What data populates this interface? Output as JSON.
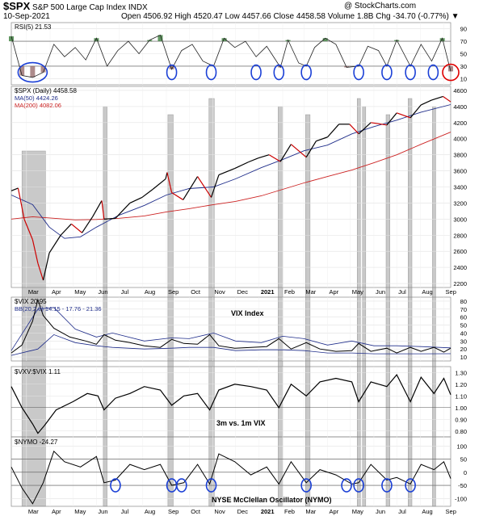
{
  "header": {
    "symbol": "$SPX",
    "name": "S&P 500 Large Cap Index",
    "exchange": "INDX",
    "date": "10-Sep-2021",
    "quote": "Open 4506.92 High 4520.47 Low 4457.66 Close 4458.58 Volume 1.8B Chg -34.70 (-0.77%) ▼",
    "credit": "@ StockCharts.com"
  },
  "months": [
    "Mar",
    "Apr",
    "May",
    "Jun",
    "Jul",
    "Aug",
    "Sep",
    "Oct",
    "Nov",
    "Dec",
    "2021",
    "Feb",
    "Mar",
    "Apr",
    "May",
    "Jun",
    "Jul",
    "Aug",
    "Sep"
  ],
  "colors": {
    "price_up": "#000000",
    "price_down": "#cc0000",
    "ma50": "#1f2d8a",
    "ma200": "#cc2222",
    "rsi_fill": "#3a7d3a",
    "shade": "#c0c0c0",
    "circle": "#1a3fd6",
    "circle_last": "#e00000"
  },
  "chart_data": [
    {
      "type": "line",
      "title": "RSI(5) 21.53",
      "legend": "RSI(5) 21.53",
      "yticks": [
        10,
        30,
        50,
        70,
        90
      ],
      "ylim": [
        0,
        100
      ],
      "levels": [
        30,
        70
      ],
      "dates": [
        "2020-02-10",
        "2020-02-24",
        "2020-03-09",
        "2020-03-23",
        "2020-04-06",
        "2020-04-20",
        "2020-05-04",
        "2020-05-18",
        "2020-06-01",
        "2020-06-15",
        "2020-06-29",
        "2020-07-13",
        "2020-07-27",
        "2020-08-10",
        "2020-08-24",
        "2020-09-08",
        "2020-09-21",
        "2020-10-05",
        "2020-10-19",
        "2020-11-02",
        "2020-11-16",
        "2020-11-30",
        "2020-12-14",
        "2020-12-28",
        "2021-01-11",
        "2021-01-29",
        "2021-02-08",
        "2021-02-22",
        "2021-03-04",
        "2021-03-15",
        "2021-03-29",
        "2021-04-12",
        "2021-04-26",
        "2021-05-12",
        "2021-05-24",
        "2021-06-07",
        "2021-06-18",
        "2021-07-01",
        "2021-07-19",
        "2021-08-02",
        "2021-08-16",
        "2021-08-30",
        "2021-09-10"
      ],
      "values": [
        78,
        15,
        12,
        20,
        65,
        45,
        60,
        40,
        75,
        30,
        55,
        70,
        50,
        72,
        80,
        25,
        55,
        65,
        38,
        30,
        75,
        60,
        70,
        45,
        62,
        28,
        72,
        35,
        30,
        60,
        75,
        65,
        28,
        30,
        62,
        55,
        30,
        72,
        30,
        65,
        38,
        75,
        21.53
      ]
    },
    {
      "type": "line",
      "title": "$SPX (Daily) 4458.58",
      "legend": [
        "$SPX (Daily) 4458.58",
        "MA(50) 4424.26",
        "MA(200) 4082.06"
      ],
      "yticks": [
        2200,
        2400,
        2600,
        2800,
        3000,
        3200,
        3400,
        3600,
        3800,
        4000,
        4200,
        4400,
        4600
      ],
      "ylim": [
        2150,
        4650
      ],
      "series": [
        {
          "name": "$SPX (Daily) 4458.58",
          "x": [
            "2020-02-10",
            "2020-02-19",
            "2020-02-27",
            "2020-03-09",
            "2020-03-16",
            "2020-03-23",
            "2020-03-31",
            "2020-04-15",
            "2020-04-29",
            "2020-05-13",
            "2020-05-27",
            "2020-06-08",
            "2020-06-11",
            "2020-06-26",
            "2020-07-15",
            "2020-07-31",
            "2020-08-14",
            "2020-08-31",
            "2020-09-02",
            "2020-09-08",
            "2020-09-23",
            "2020-10-12",
            "2020-10-30",
            "2020-11-09",
            "2020-11-30",
            "2020-12-18",
            "2020-12-31",
            "2021-01-14",
            "2021-01-29",
            "2021-02-12",
            "2021-03-04",
            "2021-03-17",
            "2021-04-01",
            "2021-04-16",
            "2021-04-30",
            "2021-05-12",
            "2021-05-28",
            "2021-06-18",
            "2021-07-01",
            "2021-07-19",
            "2021-08-02",
            "2021-08-16",
            "2021-08-31",
            "2021-09-10"
          ],
          "values": [
            3352,
            3385,
            3000,
            2745,
            2450,
            2240,
            2580,
            2800,
            2940,
            2830,
            3030,
            3230,
            3000,
            3010,
            3200,
            3270,
            3370,
            3500,
            3580,
            3330,
            3240,
            3530,
            3270,
            3550,
            3630,
            3710,
            3760,
            3800,
            3715,
            3930,
            3770,
            3970,
            4020,
            4180,
            4180,
            4060,
            4200,
            4170,
            4320,
            4260,
            4420,
            4480,
            4525,
            4458.58
          ]
        },
        {
          "name": "MA(50) 4424.26",
          "x": [
            "2020-02-10",
            "2020-03-09",
            "2020-03-31",
            "2020-04-20",
            "2020-05-11",
            "2020-06-01",
            "2020-07-01",
            "2020-08-03",
            "2020-09-01",
            "2020-10-01",
            "2020-11-02",
            "2020-12-01",
            "2021-01-04",
            "2021-02-01",
            "2021-03-01",
            "2021-04-01",
            "2021-05-03",
            "2021-06-01",
            "2021-07-01",
            "2021-08-02",
            "2021-09-10"
          ],
          "values": [
            3300,
            3180,
            2900,
            2760,
            2780,
            2900,
            3050,
            3170,
            3300,
            3380,
            3400,
            3500,
            3640,
            3740,
            3850,
            3920,
            4060,
            4150,
            4230,
            4330,
            4424.26
          ]
        },
        {
          "name": "MA(200) 4082.06",
          "x": [
            "2020-02-10",
            "2020-03-09",
            "2020-04-06",
            "2020-05-04",
            "2020-06-01",
            "2020-07-01",
            "2020-08-03",
            "2020-09-01",
            "2020-10-01",
            "2020-11-02",
            "2020-12-01",
            "2021-01-04",
            "2021-02-01",
            "2021-03-01",
            "2021-04-01",
            "2021-05-03",
            "2021-06-01",
            "2021-07-01",
            "2021-08-02",
            "2021-09-10"
          ],
          "values": [
            3000,
            3030,
            3010,
            2990,
            2995,
            3010,
            3040,
            3090,
            3130,
            3180,
            3220,
            3290,
            3370,
            3450,
            3530,
            3610,
            3700,
            3800,
            3930,
            4082.06
          ]
        }
      ]
    },
    {
      "type": "line",
      "title": "VIX Index",
      "legend": [
        "$VIX 20.95",
        "BB(20,2.0) 14.15 - 17.76 - 21.36"
      ],
      "yticks": [
        10,
        20,
        30,
        40,
        50,
        60,
        70,
        80
      ],
      "ylim": [
        5,
        85
      ],
      "series": [
        {
          "name": "$VIX 20.95",
          "x": [
            "2020-02-10",
            "2020-02-24",
            "2020-03-09",
            "2020-03-16",
            "2020-03-23",
            "2020-04-06",
            "2020-04-27",
            "2020-05-18",
            "2020-06-01",
            "2020-06-11",
            "2020-06-26",
            "2020-07-15",
            "2020-08-03",
            "2020-08-24",
            "2020-09-08",
            "2020-09-24",
            "2020-10-12",
            "2020-10-28",
            "2020-11-09",
            "2020-11-30",
            "2020-12-21",
            "2021-01-11",
            "2021-01-27",
            "2021-02-12",
            "2021-03-04",
            "2021-03-22",
            "2021-04-12",
            "2021-05-03",
            "2021-05-12",
            "2021-05-28",
            "2021-06-18",
            "2021-07-01",
            "2021-07-19",
            "2021-08-02",
            "2021-08-19",
            "2021-09-01",
            "2021-09-10"
          ],
          "values": [
            15,
            25,
            55,
            82,
            62,
            46,
            35,
            30,
            26,
            38,
            31,
            28,
            24,
            22,
            32,
            27,
            26,
            38,
            24,
            21,
            22,
            23,
            33,
            20,
            28,
            20,
            17,
            18,
            27,
            17,
            21,
            15,
            22,
            17,
            22,
            16,
            20.95
          ]
        },
        {
          "name": "BB upper",
          "x": [
            "2020-02-10",
            "2020-03-16",
            "2020-04-06",
            "2020-05-04",
            "2020-06-01",
            "2020-06-22",
            "2020-08-03",
            "2020-09-08",
            "2020-10-01",
            "2020-11-02",
            "2020-12-01",
            "2021-01-04",
            "2021-02-01",
            "2021-03-01",
            "2021-04-01",
            "2021-05-03",
            "2021-06-01",
            "2021-07-01",
            "2021-08-02",
            "2021-09-10"
          ],
          "values": [
            18,
            70,
            72,
            45,
            35,
            40,
            30,
            34,
            33,
            40,
            30,
            28,
            36,
            33,
            25,
            30,
            24,
            24,
            23,
            21.36
          ]
        },
        {
          "name": "BB lower",
          "x": [
            "2020-02-10",
            "2020-03-16",
            "2020-04-06",
            "2020-05-04",
            "2020-06-01",
            "2020-06-22",
            "2020-08-03",
            "2020-09-08",
            "2020-10-01",
            "2020-11-02",
            "2020-12-01",
            "2021-01-04",
            "2021-02-01",
            "2021-03-01",
            "2021-04-01",
            "2021-05-03",
            "2021-06-01",
            "2021-07-01",
            "2021-08-02",
            "2021-09-10"
          ],
          "values": [
            12,
            20,
            38,
            28,
            24,
            22,
            20,
            21,
            22,
            22,
            18,
            19,
            19,
            18,
            15,
            15,
            14,
            14,
            14,
            14.15
          ]
        }
      ]
    },
    {
      "type": "line",
      "title": "3m vs. 1m VIX",
      "legend": "$VXV:$VIX 1.11",
      "yticks": [
        0.8,
        0.9,
        1.0,
        1.1,
        1.2,
        1.3
      ],
      "ylim": [
        0.75,
        1.35
      ],
      "x": [
        "2020-02-10",
        "2020-02-24",
        "2020-03-09",
        "2020-03-16",
        "2020-03-25",
        "2020-04-09",
        "2020-05-01",
        "2020-05-20",
        "2020-06-03",
        "2020-06-11",
        "2020-06-26",
        "2020-07-15",
        "2020-08-03",
        "2020-08-24",
        "2020-09-08",
        "2020-09-24",
        "2020-10-12",
        "2020-10-28",
        "2020-11-09",
        "2020-11-30",
        "2020-12-21",
        "2021-01-11",
        "2021-01-27",
        "2021-02-12",
        "2021-03-04",
        "2021-03-22",
        "2021-04-12",
        "2021-05-03",
        "2021-05-12",
        "2021-05-28",
        "2021-06-18",
        "2021-07-01",
        "2021-07-19",
        "2021-08-02",
        "2021-08-19",
        "2021-09-01",
        "2021-09-10"
      ],
      "values": [
        1.18,
        1.0,
        0.86,
        0.78,
        0.85,
        0.98,
        1.05,
        1.12,
        1.1,
        0.98,
        1.08,
        1.12,
        1.18,
        1.15,
        1.02,
        1.1,
        1.12,
        0.98,
        1.15,
        1.2,
        1.18,
        1.15,
        1.0,
        1.2,
        1.1,
        1.22,
        1.25,
        1.22,
        1.05,
        1.22,
        1.18,
        1.28,
        1.05,
        1.26,
        1.12,
        1.25,
        1.11
      ]
    },
    {
      "type": "line",
      "title": "NYSE McClellan Oscillator (NYMO)",
      "legend": "$NYMO -24.27",
      "yticks": [
        -100,
        -50,
        0,
        50,
        100
      ],
      "ylim": [
        -130,
        135
      ],
      "levels": [
        -50,
        0,
        50
      ],
      "x": [
        "2020-02-10",
        "2020-02-24",
        "2020-03-09",
        "2020-03-23",
        "2020-04-06",
        "2020-04-20",
        "2020-05-11",
        "2020-06-01",
        "2020-06-11",
        "2020-06-26",
        "2020-07-15",
        "2020-08-03",
        "2020-08-24",
        "2020-09-08",
        "2020-09-24",
        "2020-10-12",
        "2020-10-28",
        "2020-11-09",
        "2020-11-30",
        "2020-12-21",
        "2021-01-11",
        "2021-01-27",
        "2021-02-12",
        "2021-03-04",
        "2021-03-22",
        "2021-04-12",
        "2021-05-03",
        "2021-05-12",
        "2021-05-28",
        "2021-06-18",
        "2021-07-01",
        "2021-07-19",
        "2021-08-02",
        "2021-08-19",
        "2021-09-01",
        "2021-09-10"
      ],
      "values": [
        20,
        -60,
        -120,
        -40,
        80,
        40,
        20,
        60,
        -40,
        -30,
        30,
        10,
        30,
        -50,
        -40,
        30,
        -45,
        70,
        40,
        -10,
        20,
        -45,
        40,
        -40,
        10,
        -10,
        -45,
        -40,
        30,
        -30,
        -20,
        -45,
        30,
        10,
        40,
        -24.27
      ]
    }
  ],
  "highlight_periods": [
    {
      "start": "2020-02-24",
      "end": "2020-03-26"
    },
    {
      "start": "2020-06-10",
      "end": "2020-06-15"
    },
    {
      "start": "2020-09-03",
      "end": "2020-09-10"
    },
    {
      "start": "2020-10-27",
      "end": "2020-11-03"
    },
    {
      "start": "2021-01-26",
      "end": "2021-02-01"
    },
    {
      "start": "2021-03-03",
      "end": "2021-03-09"
    },
    {
      "start": "2021-05-10",
      "end": "2021-05-14"
    },
    {
      "start": "2021-05-17",
      "end": "2021-05-21"
    },
    {
      "start": "2021-06-17",
      "end": "2021-06-22"
    },
    {
      "start": "2021-07-16",
      "end": "2021-07-21"
    },
    {
      "start": "2021-08-17",
      "end": "2021-08-20"
    }
  ],
  "rsi_circles": [
    "2020-03-09",
    "2020-09-08",
    "2020-10-30",
    "2020-12-28",
    "2021-01-27",
    "2021-03-04",
    "2021-05-12",
    "2021-06-18",
    "2021-07-19",
    "2021-08-18",
    "2021-09-10"
  ],
  "nymo_circles": [
    "2020-06-26",
    "2020-09-08",
    "2020-09-21",
    "2020-10-30",
    "2021-03-04",
    "2021-04-26",
    "2021-05-12",
    "2021-06-18",
    "2021-07-19"
  ]
}
